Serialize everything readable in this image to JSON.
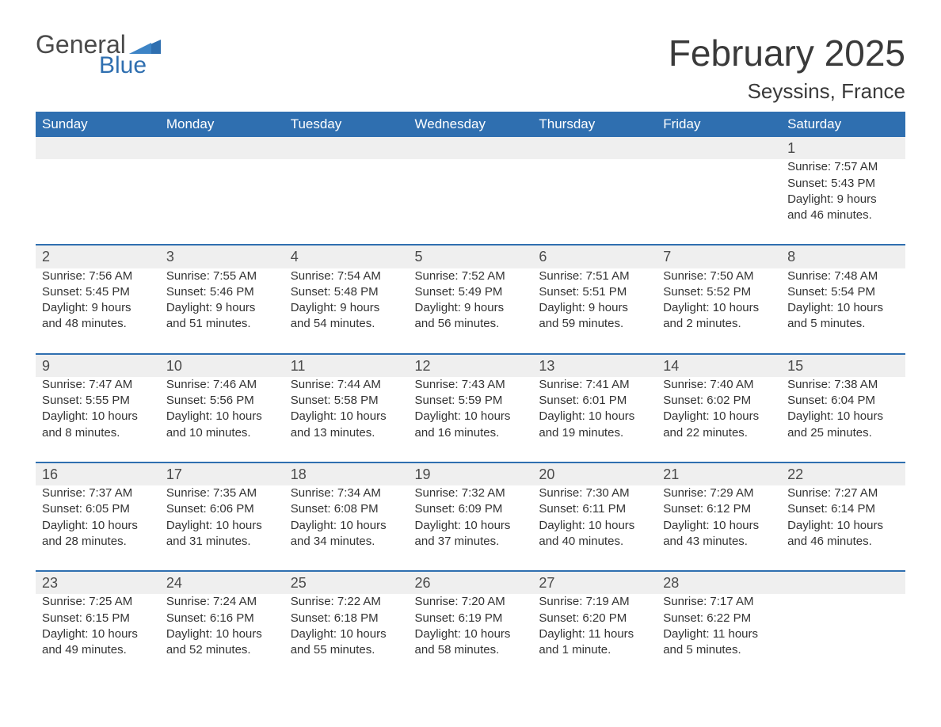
{
  "brand": {
    "general": "General",
    "blue": "Blue"
  },
  "header": {
    "month_title": "February 2025",
    "location": "Seyssins, France"
  },
  "colors": {
    "header_bg": "#2f6fb0",
    "header_text": "#ffffff",
    "daynum_bg": "#efefef",
    "row_border": "#2f6fb0",
    "text": "#333333",
    "background": "#ffffff",
    "logo_blue": "#2f6fb0",
    "logo_gray": "#4a4a4a"
  },
  "weekdays": [
    "Sunday",
    "Monday",
    "Tuesday",
    "Wednesday",
    "Thursday",
    "Friday",
    "Saturday"
  ],
  "weeks": [
    [
      null,
      null,
      null,
      null,
      null,
      null,
      {
        "n": "1",
        "sunrise": "Sunrise: 7:57 AM",
        "sunset": "Sunset: 5:43 PM",
        "dl1": "Daylight: 9 hours",
        "dl2": "and 46 minutes."
      }
    ],
    [
      {
        "n": "2",
        "sunrise": "Sunrise: 7:56 AM",
        "sunset": "Sunset: 5:45 PM",
        "dl1": "Daylight: 9 hours",
        "dl2": "and 48 minutes."
      },
      {
        "n": "3",
        "sunrise": "Sunrise: 7:55 AM",
        "sunset": "Sunset: 5:46 PM",
        "dl1": "Daylight: 9 hours",
        "dl2": "and 51 minutes."
      },
      {
        "n": "4",
        "sunrise": "Sunrise: 7:54 AM",
        "sunset": "Sunset: 5:48 PM",
        "dl1": "Daylight: 9 hours",
        "dl2": "and 54 minutes."
      },
      {
        "n": "5",
        "sunrise": "Sunrise: 7:52 AM",
        "sunset": "Sunset: 5:49 PM",
        "dl1": "Daylight: 9 hours",
        "dl2": "and 56 minutes."
      },
      {
        "n": "6",
        "sunrise": "Sunrise: 7:51 AM",
        "sunset": "Sunset: 5:51 PM",
        "dl1": "Daylight: 9 hours",
        "dl2": "and 59 minutes."
      },
      {
        "n": "7",
        "sunrise": "Sunrise: 7:50 AM",
        "sunset": "Sunset: 5:52 PM",
        "dl1": "Daylight: 10 hours",
        "dl2": "and 2 minutes."
      },
      {
        "n": "8",
        "sunrise": "Sunrise: 7:48 AM",
        "sunset": "Sunset: 5:54 PM",
        "dl1": "Daylight: 10 hours",
        "dl2": "and 5 minutes."
      }
    ],
    [
      {
        "n": "9",
        "sunrise": "Sunrise: 7:47 AM",
        "sunset": "Sunset: 5:55 PM",
        "dl1": "Daylight: 10 hours",
        "dl2": "and 8 minutes."
      },
      {
        "n": "10",
        "sunrise": "Sunrise: 7:46 AM",
        "sunset": "Sunset: 5:56 PM",
        "dl1": "Daylight: 10 hours",
        "dl2": "and 10 minutes."
      },
      {
        "n": "11",
        "sunrise": "Sunrise: 7:44 AM",
        "sunset": "Sunset: 5:58 PM",
        "dl1": "Daylight: 10 hours",
        "dl2": "and 13 minutes."
      },
      {
        "n": "12",
        "sunrise": "Sunrise: 7:43 AM",
        "sunset": "Sunset: 5:59 PM",
        "dl1": "Daylight: 10 hours",
        "dl2": "and 16 minutes."
      },
      {
        "n": "13",
        "sunrise": "Sunrise: 7:41 AM",
        "sunset": "Sunset: 6:01 PM",
        "dl1": "Daylight: 10 hours",
        "dl2": "and 19 minutes."
      },
      {
        "n": "14",
        "sunrise": "Sunrise: 7:40 AM",
        "sunset": "Sunset: 6:02 PM",
        "dl1": "Daylight: 10 hours",
        "dl2": "and 22 minutes."
      },
      {
        "n": "15",
        "sunrise": "Sunrise: 7:38 AM",
        "sunset": "Sunset: 6:04 PM",
        "dl1": "Daylight: 10 hours",
        "dl2": "and 25 minutes."
      }
    ],
    [
      {
        "n": "16",
        "sunrise": "Sunrise: 7:37 AM",
        "sunset": "Sunset: 6:05 PM",
        "dl1": "Daylight: 10 hours",
        "dl2": "and 28 minutes."
      },
      {
        "n": "17",
        "sunrise": "Sunrise: 7:35 AM",
        "sunset": "Sunset: 6:06 PM",
        "dl1": "Daylight: 10 hours",
        "dl2": "and 31 minutes."
      },
      {
        "n": "18",
        "sunrise": "Sunrise: 7:34 AM",
        "sunset": "Sunset: 6:08 PM",
        "dl1": "Daylight: 10 hours",
        "dl2": "and 34 minutes."
      },
      {
        "n": "19",
        "sunrise": "Sunrise: 7:32 AM",
        "sunset": "Sunset: 6:09 PM",
        "dl1": "Daylight: 10 hours",
        "dl2": "and 37 minutes."
      },
      {
        "n": "20",
        "sunrise": "Sunrise: 7:30 AM",
        "sunset": "Sunset: 6:11 PM",
        "dl1": "Daylight: 10 hours",
        "dl2": "and 40 minutes."
      },
      {
        "n": "21",
        "sunrise": "Sunrise: 7:29 AM",
        "sunset": "Sunset: 6:12 PM",
        "dl1": "Daylight: 10 hours",
        "dl2": "and 43 minutes."
      },
      {
        "n": "22",
        "sunrise": "Sunrise: 7:27 AM",
        "sunset": "Sunset: 6:14 PM",
        "dl1": "Daylight: 10 hours",
        "dl2": "and 46 minutes."
      }
    ],
    [
      {
        "n": "23",
        "sunrise": "Sunrise: 7:25 AM",
        "sunset": "Sunset: 6:15 PM",
        "dl1": "Daylight: 10 hours",
        "dl2": "and 49 minutes."
      },
      {
        "n": "24",
        "sunrise": "Sunrise: 7:24 AM",
        "sunset": "Sunset: 6:16 PM",
        "dl1": "Daylight: 10 hours",
        "dl2": "and 52 minutes."
      },
      {
        "n": "25",
        "sunrise": "Sunrise: 7:22 AM",
        "sunset": "Sunset: 6:18 PM",
        "dl1": "Daylight: 10 hours",
        "dl2": "and 55 minutes."
      },
      {
        "n": "26",
        "sunrise": "Sunrise: 7:20 AM",
        "sunset": "Sunset: 6:19 PM",
        "dl1": "Daylight: 10 hours",
        "dl2": "and 58 minutes."
      },
      {
        "n": "27",
        "sunrise": "Sunrise: 7:19 AM",
        "sunset": "Sunset: 6:20 PM",
        "dl1": "Daylight: 11 hours",
        "dl2": "and 1 minute."
      },
      {
        "n": "28",
        "sunrise": "Sunrise: 7:17 AM",
        "sunset": "Sunset: 6:22 PM",
        "dl1": "Daylight: 11 hours",
        "dl2": "and 5 minutes."
      },
      null
    ]
  ]
}
